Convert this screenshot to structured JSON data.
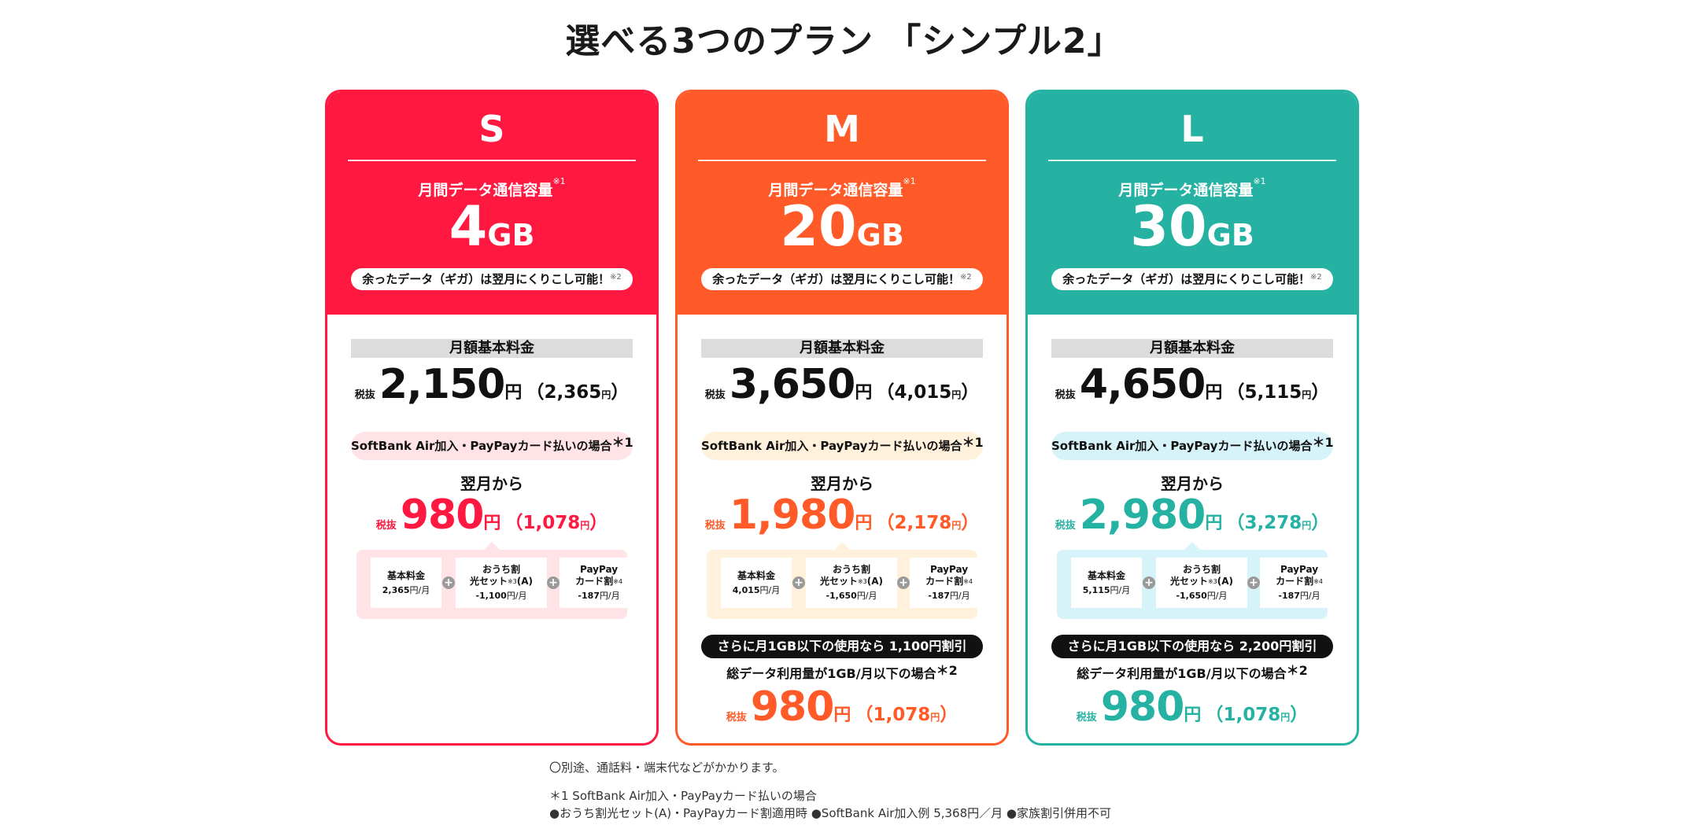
{
  "title": "選べる3つのプラン 「シンプル2」",
  "common": {
    "capacity_label": "月間データ通信容量",
    "capacity_note": "※1",
    "carryover": "余ったデータ（ギガ）は翌月にくりこし可能！",
    "carryover_note": "※2",
    "monthly_fee_label": "月額基本料金",
    "tax_excluded": "税抜",
    "yen": "円",
    "condition": "SoftBank Air加入・PayPayカード払いの場合",
    "condition_note": "＊1",
    "next_month": "翌月から",
    "plus": "+",
    "breakdown_base_label": "基本料金",
    "breakdown_ouchi_label1": "おうち割",
    "breakdown_ouchi_label2": "光セット",
    "breakdown_ouchi_note": "※3",
    "breakdown_ouchi_suffix": "(A)",
    "breakdown_paypay_label1": "PayPay",
    "breakdown_paypay_label2": "カード割",
    "breakdown_paypay_note": "※4",
    "per_month": "円/月",
    "total_usage_note": "総データ利用量が1GB/月以下の場合",
    "total_usage_mark": "＊2"
  },
  "plans": {
    "s": {
      "name": "S",
      "capacity": "4",
      "unit": "GB",
      "base_price": "2,150",
      "base_price_tax_in": "2,365",
      "discount_price": "980",
      "discount_price_tax_in": "1,078",
      "breakdown_base": "2,365",
      "breakdown_ouchi": "-1,100",
      "breakdown_paypay": "-187"
    },
    "m": {
      "name": "M",
      "capacity": "20",
      "unit": "GB",
      "base_price": "3,650",
      "base_price_tax_in": "4,015",
      "discount_price": "1,980",
      "discount_price_tax_in": "2,178",
      "breakdown_base": "4,015",
      "breakdown_ouchi": "-1,650",
      "breakdown_paypay": "-187",
      "low_usage_banner": "さらに月1GB以下の使用なら 1,100円割引",
      "final_price": "980",
      "final_price_tax_in": "1,078"
    },
    "l": {
      "name": "L",
      "capacity": "30",
      "unit": "GB",
      "base_price": "4,650",
      "base_price_tax_in": "5,115",
      "discount_price": "2,980",
      "discount_price_tax_in": "3,278",
      "breakdown_base": "5,115",
      "breakdown_ouchi": "-1,650",
      "breakdown_paypay": "-187",
      "low_usage_banner": "さらに月1GB以下の使用なら 2,200円割引",
      "final_price": "980",
      "final_price_tax_in": "1,078"
    }
  },
  "footnotes": {
    "line1": "〇別途、通話料・端末代などがかかります。",
    "line2": "＊1 SoftBank Air加入・PayPayカード払いの場合",
    "line3": "●おうち割光セット(A)・PayPayカード割適用時 ●SoftBank Air加入例 5,368円／月 ●家族割引併用不可"
  }
}
